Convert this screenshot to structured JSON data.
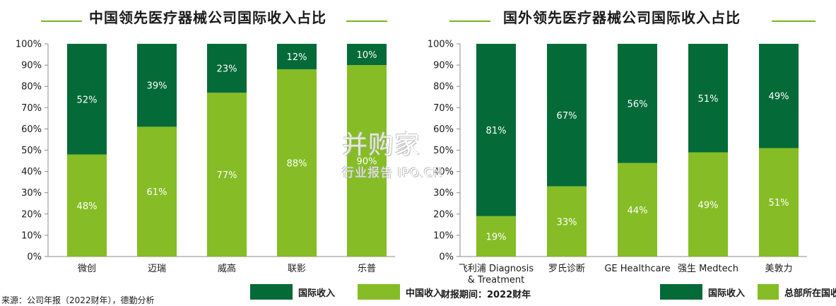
{
  "chart_data": [
    {
      "type": "bar",
      "stacked": true,
      "title": "中国领先医疗器械公司国际收入占比",
      "categories": [
        "微创",
        "迈瑞",
        "威高",
        "联影",
        "乐普"
      ],
      "series": [
        {
          "name": "中国收入",
          "color": "#86bc25",
          "values": [
            48,
            61,
            77,
            88,
            90
          ],
          "labels": [
            "48%",
            "61%",
            "77%",
            "88%",
            "90%"
          ]
        },
        {
          "name": "国际收入",
          "color": "#046a38",
          "values": [
            52,
            39,
            23,
            12,
            10
          ],
          "labels": [
            "52%",
            "39%",
            "23%",
            "12%",
            "10%"
          ]
        }
      ],
      "yticks": [
        "0%",
        "10%",
        "20%",
        "30%",
        "40%",
        "50%",
        "60%",
        "70%",
        "80%",
        "90%",
        "100%"
      ],
      "ylim": [
        0,
        100
      ],
      "grid": false
    },
    {
      "type": "bar",
      "stacked": true,
      "title": "国外领先医疗器械公司国际收入占比",
      "categories": [
        "飞利浦 Diagnosis\n& Treatment",
        "罗氏诊断",
        "GE Healthcare",
        "强生 Medtech",
        "美敦力"
      ],
      "series": [
        {
          "name": "总部所在国收入",
          "color": "#86bc25",
          "values": [
            19,
            33,
            44,
            49,
            51
          ],
          "labels": [
            "19%",
            "33%",
            "44%",
            "49%",
            "51%"
          ]
        },
        {
          "name": "国际收入",
          "color": "#046a38",
          "values": [
            81,
            67,
            56,
            51,
            49
          ],
          "labels": [
            "81%",
            "67%",
            "56%",
            "51%",
            "49%"
          ]
        }
      ],
      "yticks": [
        "0%",
        "10%",
        "20%",
        "30%",
        "40%",
        "50%",
        "60%",
        "70%",
        "80%",
        "90%",
        "100%"
      ],
      "ylim": [
        0,
        100
      ],
      "grid": false
    }
  ],
  "footer": {
    "source": "来源：公司年报（2022财年），德勤分析",
    "period": "财报期间：2022财年"
  },
  "watermark": {
    "brand": "并购家",
    "tagline": "行业报告 IPO.CN"
  }
}
